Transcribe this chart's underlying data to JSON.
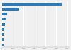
{
  "values": [
    5500,
    1600,
    500,
    350,
    270,
    210,
    175,
    150,
    120
  ],
  "bar_color": "#2b7bba",
  "background_color": "#f0f0f0",
  "bar_height": 0.55,
  "xlim": [
    0,
    6200
  ]
}
